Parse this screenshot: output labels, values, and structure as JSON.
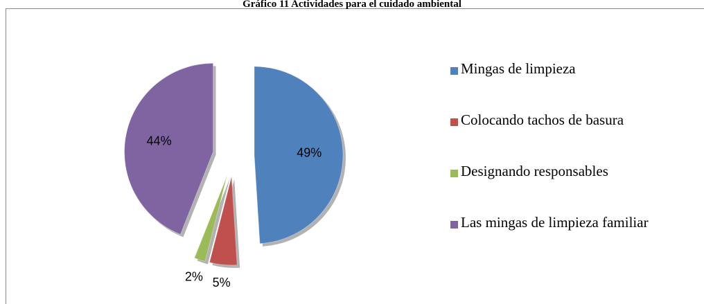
{
  "chart_data": {
    "type": "pie",
    "title": "Gráfico 11 Actividades para el cuidado ambiental",
    "categories": [
      "Mingas de limpieza",
      "Colocando tachos de basura",
      "Designando responsables",
      "Las mingas de limpieza familiar"
    ],
    "values": [
      49,
      5,
      2,
      44
    ],
    "value_labels": [
      "49%",
      "5%",
      "2%",
      "44%"
    ],
    "colors": [
      "#4f81bd",
      "#c0504d",
      "#9bbb59",
      "#8064a2"
    ],
    "legend": "right"
  }
}
